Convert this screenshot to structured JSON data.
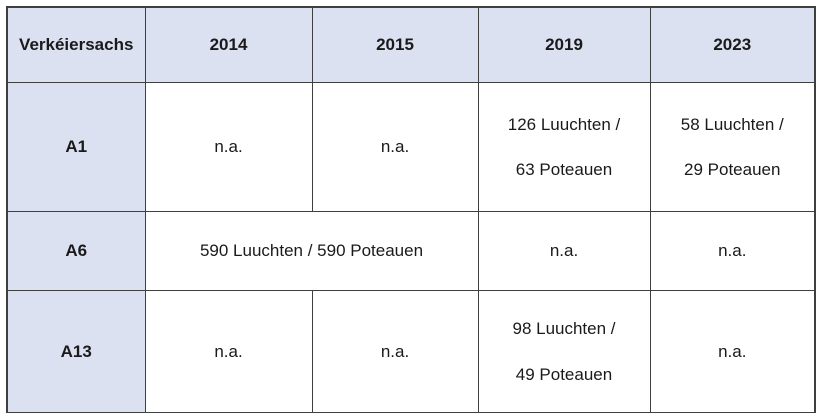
{
  "table": {
    "title_column": "Verkéiersachs",
    "columns": [
      "Verkéiersachs",
      "2014",
      "2015",
      "2019",
      "2023"
    ],
    "rows": [
      {
        "label": "A1",
        "cells": [
          {
            "lines": [
              "n.a."
            ]
          },
          {
            "lines": [
              "n.a."
            ]
          },
          {
            "lines": [
              "126 Luuchten /",
              "63 Poteauen"
            ]
          },
          {
            "lines": [
              "58 Luuchten /",
              "29 Poteauen"
            ]
          }
        ]
      },
      {
        "label": "A6",
        "cells": [
          {
            "lines": [
              "590 Luuchten / 590 Poteauen"
            ],
            "colspan": 2
          },
          {
            "lines": [
              "n.a."
            ]
          },
          {
            "lines": [
              "n.a."
            ]
          }
        ]
      },
      {
        "label": "A13",
        "cells": [
          {
            "lines": [
              "n.a."
            ]
          },
          {
            "lines": [
              "n.a."
            ]
          },
          {
            "lines": [
              "98 Luuchten /",
              "49 Poteauen"
            ]
          },
          {
            "lines": [
              "n.a."
            ]
          }
        ]
      }
    ],
    "colors": {
      "shaded_fill": "#dbe1f1",
      "cell_fill": "#ffffff",
      "border": "#3f3f3f",
      "text": "#1a1a1a"
    }
  }
}
